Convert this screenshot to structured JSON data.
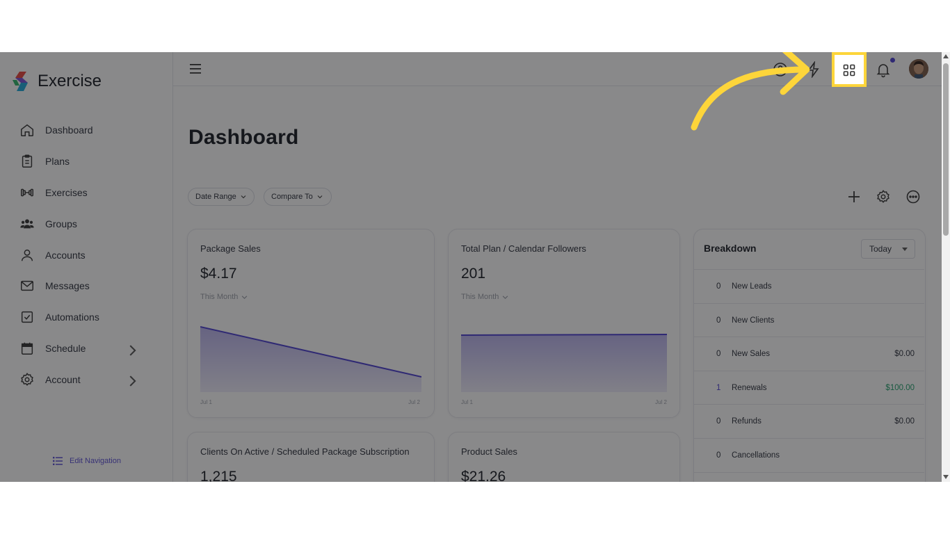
{
  "app": {
    "name": "Exercise"
  },
  "sidebar": {
    "items": [
      {
        "label": "Dashboard",
        "icon": "home-icon"
      },
      {
        "label": "Plans",
        "icon": "clipboard-icon"
      },
      {
        "label": "Exercises",
        "icon": "dumbbell-icon"
      },
      {
        "label": "Groups",
        "icon": "users-icon"
      },
      {
        "label": "Accounts",
        "icon": "user-icon"
      },
      {
        "label": "Messages",
        "icon": "mail-icon"
      },
      {
        "label": "Automations",
        "icon": "checkbox-icon"
      },
      {
        "label": "Schedule",
        "icon": "calendar-icon"
      },
      {
        "label": "Account",
        "icon": "gear-icon"
      }
    ],
    "edit_nav_label": "Edit Navigation"
  },
  "page": {
    "title": "Dashboard"
  },
  "filters": {
    "date_range": "Date Range",
    "compare_to": "Compare To"
  },
  "cards": [
    {
      "title": "Package Sales",
      "value": "$4.17",
      "period": "This Month",
      "x_start": "Jul 1",
      "x_end": "Jul 2"
    },
    {
      "title": "Total Plan / Calendar Followers",
      "value": "201",
      "period": "This Month",
      "x_start": "Jul 1",
      "x_end": "Jul 2"
    },
    {
      "title": "Clients On Active / Scheduled Package Subscription",
      "value": "1,215"
    },
    {
      "title": "Product Sales",
      "value": "$21.26"
    }
  ],
  "breakdown": {
    "title": "Breakdown",
    "period": "Today",
    "rows": [
      {
        "count": "0",
        "label": "New Leads",
        "amount": ""
      },
      {
        "count": "0",
        "label": "New Clients",
        "amount": ""
      },
      {
        "count": "0",
        "label": "New Sales",
        "amount": "$0.00"
      },
      {
        "count": "1",
        "label": "Renewals",
        "amount": "$100.00"
      },
      {
        "count": "0",
        "label": "Refunds",
        "amount": "$0.00"
      },
      {
        "count": "0",
        "label": "Cancellations",
        "amount": ""
      }
    ]
  },
  "colors": {
    "accent": "#4b3fd1",
    "positive": "#1e9e6a",
    "highlight": "#fdd53a"
  }
}
